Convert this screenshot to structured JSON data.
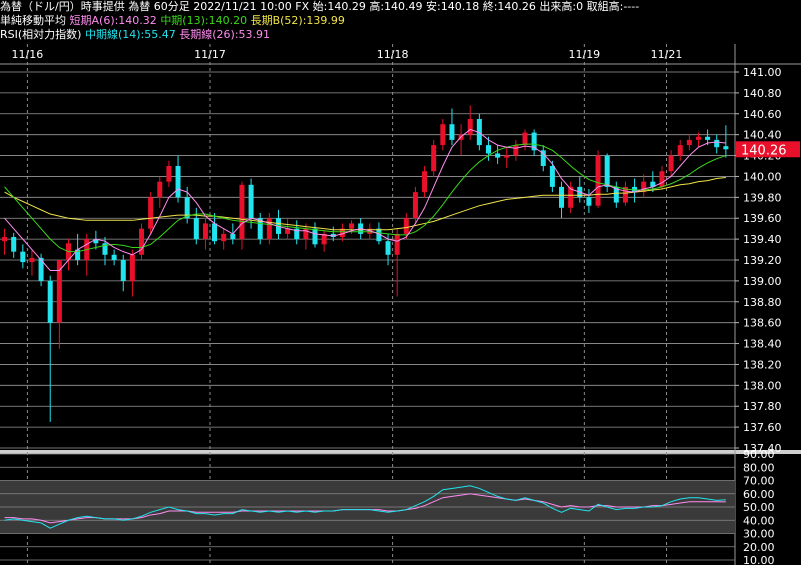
{
  "header": {
    "line1": "為替（ドル/円）時事提供 為替 60分足 2022/11/21 10:00 FX 始:140.29 高:140.49 安:140.18 終:140.26 出来高:0 取組高:----",
    "ma_title": "単純移動平均",
    "ma_short": "短期A(6):140.32",
    "ma_mid": "中期(13):140.20",
    "ma_long": "長期B(52):139.99",
    "rsi_title": "RSI(相対力指数)",
    "rsi_mid": "中期線(14):55.47",
    "rsi_long": "長期線(26):53.91"
  },
  "colors": {
    "up": "#e8102a",
    "down": "#22e4ee",
    "ma_short": "#ff8cf0",
    "ma_mid": "#38d818",
    "ma_long": "#f0e44a",
    "rsi_mid": "#22e4ee",
    "rsi_long": "#ff8cf0",
    "price_tag": "#e8102a"
  },
  "chart_data": [
    {
      "type": "candlestick",
      "dates": [
        "11/16",
        "11/17",
        "11/18",
        "11/19",
        "11/21"
      ],
      "y_ticks": [
        "141.00",
        "140.80",
        "140.60",
        "140.40",
        "140.20",
        "140.00",
        "139.80",
        "139.60",
        "139.40",
        "139.20",
        "139.00",
        "138.80",
        "138.60",
        "138.40",
        "138.20",
        "138.00",
        "137.80",
        "137.60",
        "137.40"
      ],
      "ylim": [
        137.4,
        141.0
      ],
      "last_price": "140.26",
      "ohlc": [
        [
          139.38,
          139.5,
          139.25,
          139.42
        ],
        [
          139.42,
          139.46,
          139.22,
          139.28
        ],
        [
          139.28,
          139.35,
          139.12,
          139.18
        ],
        [
          139.18,
          139.3,
          139.05,
          139.22
        ],
        [
          139.22,
          139.26,
          138.95,
          139.0
        ],
        [
          139.0,
          139.05,
          137.65,
          138.6
        ],
        [
          138.6,
          139.2,
          138.35,
          139.2
        ],
        [
          139.2,
          139.4,
          139.1,
          139.36
        ],
        [
          139.3,
          139.45,
          139.15,
          139.2
        ],
        [
          139.2,
          139.45,
          139.05,
          139.4
        ],
        [
          139.4,
          139.48,
          139.3,
          139.36
        ],
        [
          139.36,
          139.42,
          139.15,
          139.25
        ],
        [
          139.25,
          139.3,
          139.15,
          139.2
        ],
        [
          139.2,
          139.25,
          138.9,
          139.0
        ],
        [
          139.0,
          139.3,
          138.85,
          139.25
        ],
        [
          139.25,
          139.55,
          139.2,
          139.5
        ],
        [
          139.5,
          139.85,
          139.45,
          139.8
        ],
        [
          139.8,
          140.0,
          139.7,
          139.95
        ],
        [
          139.95,
          140.15,
          139.9,
          140.1
        ],
        [
          140.1,
          140.2,
          139.75,
          139.8
        ],
        [
          139.8,
          139.9,
          139.55,
          139.6
        ],
        [
          139.6,
          139.7,
          139.35,
          139.4
        ],
        [
          139.4,
          139.6,
          139.3,
          139.55
        ],
        [
          139.55,
          139.65,
          139.35,
          139.38
        ],
        [
          139.38,
          139.5,
          139.3,
          139.45
        ],
        [
          139.45,
          139.55,
          139.35,
          139.4
        ],
        [
          139.4,
          139.95,
          139.3,
          139.92
        ],
        [
          139.92,
          139.98,
          139.5,
          139.6
        ],
        [
          139.6,
          139.65,
          139.35,
          139.4
        ],
        [
          139.4,
          139.65,
          139.35,
          139.6
        ],
        [
          139.6,
          139.68,
          139.4,
          139.45
        ],
        [
          139.45,
          139.6,
          139.4,
          139.5
        ],
        [
          139.5,
          139.58,
          139.35,
          139.4
        ],
        [
          139.4,
          139.55,
          139.3,
          139.5
        ],
        [
          139.5,
          139.56,
          139.32,
          139.35
        ],
        [
          139.35,
          139.48,
          139.28,
          139.45
        ],
        [
          139.45,
          139.52,
          139.38,
          139.42
        ],
        [
          139.42,
          139.55,
          139.38,
          139.5
        ],
        [
          139.5,
          139.58,
          139.45,
          139.55
        ],
        [
          139.55,
          139.6,
          139.4,
          139.45
        ],
        [
          139.45,
          139.55,
          139.4,
          139.5
        ],
        [
          139.5,
          139.56,
          139.35,
          139.38
        ],
        [
          139.38,
          139.45,
          139.15,
          139.25
        ],
        [
          139.25,
          139.5,
          138.85,
          139.45
        ],
        [
          139.45,
          139.65,
          139.4,
          139.6
        ],
        [
          139.6,
          139.9,
          139.55,
          139.85
        ],
        [
          139.85,
          140.1,
          139.8,
          140.05
        ],
        [
          140.05,
          140.35,
          140.0,
          140.3
        ],
        [
          140.3,
          140.55,
          140.25,
          140.5
        ],
        [
          140.5,
          140.65,
          140.3,
          140.35
        ],
        [
          140.35,
          140.5,
          140.2,
          140.4
        ],
        [
          140.4,
          140.68,
          140.35,
          140.55
        ],
        [
          140.55,
          140.6,
          140.25,
          140.3
        ],
        [
          140.3,
          140.38,
          140.15,
          140.22
        ],
        [
          140.22,
          140.3,
          140.12,
          140.18
        ],
        [
          140.18,
          140.28,
          140.08,
          140.2
        ],
        [
          140.2,
          140.35,
          140.15,
          140.3
        ],
        [
          140.3,
          140.45,
          140.25,
          140.42
        ],
        [
          140.42,
          140.45,
          140.2,
          140.25
        ],
        [
          140.25,
          140.3,
          140.05,
          140.1
        ],
        [
          140.1,
          140.15,
          139.85,
          139.9
        ],
        [
          139.9,
          139.95,
          139.6,
          139.7
        ],
        [
          139.7,
          139.95,
          139.65,
          139.9
        ],
        [
          139.9,
          140.0,
          139.75,
          139.8
        ],
        [
          139.8,
          139.88,
          139.65,
          139.72
        ],
        [
          139.72,
          140.25,
          139.7,
          140.2
        ],
        [
          140.2,
          140.22,
          139.85,
          139.9
        ],
        [
          139.9,
          139.95,
          139.7,
          139.75
        ],
        [
          139.75,
          139.95,
          139.72,
          139.9
        ],
        [
          139.9,
          139.98,
          139.75,
          139.85
        ],
        [
          139.85,
          140.02,
          139.8,
          139.95
        ],
        [
          139.95,
          140.05,
          139.85,
          139.9
        ],
        [
          139.9,
          140.1,
          139.88,
          140.05
        ],
        [
          140.05,
          140.25,
          140.0,
          140.2
        ],
        [
          140.2,
          140.35,
          140.15,
          140.3
        ],
        [
          140.3,
          140.4,
          140.25,
          140.35
        ],
        [
          140.35,
          140.42,
          140.28,
          140.38
        ],
        [
          140.38,
          140.45,
          140.3,
          140.35
        ],
        [
          140.35,
          140.4,
          140.22,
          140.28
        ],
        [
          140.29,
          140.49,
          140.18,
          140.26
        ]
      ],
      "ma_short": [
        139.6,
        139.5,
        139.4,
        139.3,
        139.2,
        139.1,
        139.1,
        139.2,
        139.3,
        139.35,
        139.4,
        139.38,
        139.32,
        139.28,
        139.25,
        139.3,
        139.45,
        139.62,
        139.8,
        139.88,
        139.85,
        139.75,
        139.62,
        139.55,
        139.5,
        139.45,
        139.55,
        139.6,
        139.58,
        139.55,
        139.52,
        139.5,
        139.48,
        139.48,
        139.45,
        139.44,
        139.43,
        139.45,
        139.48,
        139.5,
        139.48,
        139.45,
        139.4,
        139.38,
        139.42,
        139.55,
        139.7,
        139.9,
        140.1,
        140.28,
        140.38,
        140.45,
        140.42,
        140.35,
        140.3,
        140.28,
        140.27,
        140.29,
        140.28,
        140.22,
        140.12,
        139.98,
        139.88,
        139.85,
        139.82,
        139.9,
        139.92,
        139.88,
        139.86,
        139.85,
        139.88,
        139.9,
        139.94,
        140.0,
        140.1,
        140.2,
        140.28,
        140.32,
        140.33,
        140.32
      ],
      "ma_mid": [
        139.9,
        139.8,
        139.7,
        139.6,
        139.5,
        139.4,
        139.32,
        139.28,
        139.28,
        139.3,
        139.32,
        139.34,
        139.35,
        139.34,
        139.32,
        139.32,
        139.35,
        139.42,
        139.5,
        139.58,
        139.62,
        139.64,
        139.64,
        139.62,
        139.6,
        139.58,
        139.57,
        139.56,
        139.55,
        139.54,
        139.53,
        139.52,
        139.51,
        139.5,
        139.49,
        139.48,
        139.47,
        139.47,
        139.47,
        139.47,
        139.47,
        139.46,
        139.45,
        139.44,
        139.44,
        139.47,
        139.53,
        139.62,
        139.73,
        139.85,
        139.96,
        140.06,
        140.14,
        140.2,
        140.25,
        140.28,
        140.3,
        140.31,
        140.31,
        140.29,
        140.25,
        140.18,
        140.1,
        140.03,
        139.97,
        139.94,
        139.92,
        139.9,
        139.88,
        139.87,
        139.87,
        139.88,
        139.9,
        139.93,
        139.97,
        140.02,
        140.08,
        140.13,
        140.17,
        140.2
      ],
      "ma_long": [
        139.85,
        139.8,
        139.76,
        139.72,
        139.68,
        139.64,
        139.62,
        139.6,
        139.59,
        139.58,
        139.58,
        139.58,
        139.58,
        139.58,
        139.58,
        139.59,
        139.6,
        139.61,
        139.62,
        139.63,
        139.63,
        139.63,
        139.62,
        139.62,
        139.61,
        139.6,
        139.59,
        139.58,
        139.57,
        139.56,
        139.55,
        139.54,
        139.53,
        139.52,
        139.51,
        139.5,
        139.49,
        139.49,
        139.49,
        139.49,
        139.49,
        139.49,
        139.49,
        139.5,
        139.51,
        139.53,
        139.55,
        139.57,
        139.6,
        139.63,
        139.66,
        139.69,
        139.72,
        139.74,
        139.76,
        139.78,
        139.79,
        139.8,
        139.81,
        139.82,
        139.82,
        139.82,
        139.82,
        139.82,
        139.82,
        139.83,
        139.83,
        139.84,
        139.84,
        139.85,
        139.86,
        139.87,
        139.88,
        139.9,
        139.92,
        139.93,
        139.95,
        139.96,
        139.98,
        139.99
      ]
    },
    {
      "type": "line",
      "title": "RSI",
      "y_ticks": [
        "90.00",
        "80.00",
        "70.00",
        "60.00",
        "50.00",
        "40.00",
        "30.00",
        "20.00",
        "10.00"
      ],
      "ylim": [
        10,
        90
      ],
      "series": [
        {
          "name": "中期線(14)",
          "values": [
            40,
            41,
            40,
            39,
            38,
            34,
            37,
            40,
            42,
            43,
            42,
            41,
            41,
            40,
            41,
            43,
            46,
            48,
            50,
            48,
            47,
            45,
            45,
            44,
            45,
            45,
            48,
            47,
            46,
            47,
            46,
            47,
            46,
            47,
            46,
            47,
            47,
            48,
            48,
            48,
            48,
            47,
            46,
            47,
            48,
            51,
            54,
            58,
            63,
            64,
            65,
            66,
            64,
            61,
            58,
            56,
            55,
            57,
            55,
            53,
            49,
            46,
            49,
            48,
            47,
            52,
            50,
            48,
            49,
            49,
            50,
            50,
            51,
            54,
            56,
            57,
            57,
            56,
            55,
            55.47
          ]
        },
        {
          "name": "長期線(26)",
          "values": [
            42,
            42,
            41,
            41,
            40,
            38,
            39,
            40,
            41,
            42,
            42,
            41,
            41,
            41,
            41,
            42,
            44,
            45,
            47,
            47,
            47,
            46,
            46,
            46,
            46,
            46,
            47,
            47,
            47,
            47,
            47,
            47,
            47,
            47,
            47,
            47,
            47,
            48,
            48,
            48,
            48,
            48,
            47,
            47,
            48,
            49,
            51,
            54,
            57,
            58,
            59,
            60,
            59,
            58,
            57,
            56,
            55,
            56,
            55,
            54,
            52,
            50,
            51,
            50,
            50,
            51,
            51,
            50,
            50,
            50,
            50,
            51,
            51,
            52,
            53,
            54,
            54,
            54,
            54,
            53.91
          ]
        }
      ]
    }
  ]
}
